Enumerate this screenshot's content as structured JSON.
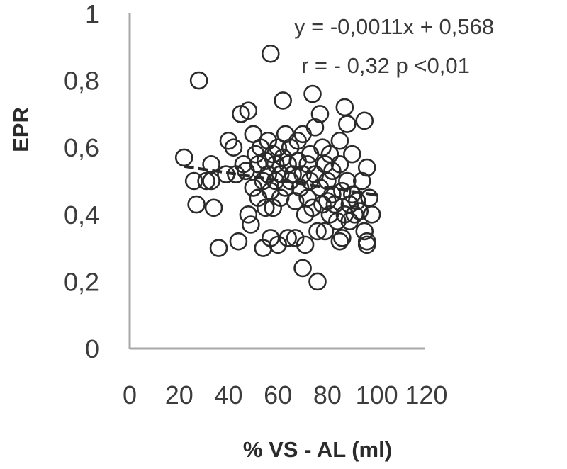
{
  "chart_data": {
    "type": "scatter",
    "xlabel": "% VS - AL  (ml)",
    "ylabel": "EPR",
    "xlim": [
      0,
      120
    ],
    "ylim": [
      0,
      1
    ],
    "x_ticks": [
      "0",
      "20",
      "40",
      "60",
      "80",
      "100",
      "120"
    ],
    "y_ticks": [
      "0",
      "0,2",
      "0,4",
      "0,6",
      "0,8",
      "1"
    ],
    "grid": false,
    "equation": "y = -0,0011x + 0,568",
    "stats": "r = - 0,32    p <0,01",
    "trendline": {
      "slope": -0.0011,
      "intercept": 0.568,
      "x_range": [
        22,
        100
      ]
    },
    "series": [
      {
        "points": [
          [
            22,
            0.57
          ],
          [
            26,
            0.5
          ],
          [
            27,
            0.43
          ],
          [
            28,
            0.8
          ],
          [
            31,
            0.5
          ],
          [
            33,
            0.55
          ],
          [
            33,
            0.5
          ],
          [
            34,
            0.42
          ],
          [
            36,
            0.3
          ],
          [
            39,
            0.52
          ],
          [
            40,
            0.62
          ],
          [
            42,
            0.6
          ],
          [
            44,
            0.32
          ],
          [
            45,
            0.7
          ],
          [
            46,
            0.55
          ],
          [
            47,
            0.53
          ],
          [
            48,
            0.71
          ],
          [
            48,
            0.4
          ],
          [
            49,
            0.37
          ],
          [
            50,
            0.64
          ],
          [
            50,
            0.48
          ],
          [
            51,
            0.58
          ],
          [
            52,
            0.45
          ],
          [
            52,
            0.55
          ],
          [
            53,
            0.6
          ],
          [
            54,
            0.5
          ],
          [
            54,
            0.3
          ],
          [
            55,
            0.56
          ],
          [
            55,
            0.42
          ],
          [
            56,
            0.62
          ],
          [
            56,
            0.52
          ],
          [
            57,
            0.33
          ],
          [
            57,
            0.47
          ],
          [
            58,
            0.58
          ],
          [
            58,
            0.42
          ],
          [
            59,
            0.55
          ],
          [
            59,
            0.5
          ],
          [
            60,
            0.6
          ],
          [
            60,
            0.31
          ],
          [
            61,
            0.52
          ],
          [
            61,
            0.45
          ],
          [
            62,
            0.74
          ],
          [
            62,
            0.57
          ],
          [
            63,
            0.48
          ],
          [
            64,
            0.55
          ],
          [
            64,
            0.33
          ],
          [
            65,
            0.5
          ],
          [
            65,
            0.6
          ],
          [
            66,
            0.52
          ],
          [
            67,
            0.44
          ],
          [
            67,
            0.33
          ],
          [
            68,
            0.62
          ],
          [
            68,
            0.56
          ],
          [
            69,
            0.48
          ],
          [
            70,
            0.64
          ],
          [
            70,
            0.52
          ],
          [
            70,
            0.24
          ],
          [
            71,
            0.4
          ],
          [
            71,
            0.31
          ],
          [
            72,
            0.55
          ],
          [
            72,
            0.45
          ],
          [
            73,
            0.58
          ],
          [
            73,
            0.5
          ],
          [
            74,
            0.76
          ],
          [
            74,
            0.42
          ],
          [
            75,
            0.66
          ],
          [
            75,
            0.52
          ],
          [
            76,
            0.35
          ],
          [
            76,
            0.2
          ],
          [
            77,
            0.7
          ],
          [
            77,
            0.48
          ],
          [
            78,
            0.6
          ],
          [
            78,
            0.43
          ],
          [
            79,
            0.55
          ],
          [
            79,
            0.35
          ],
          [
            80,
            0.5
          ],
          [
            80,
            0.44
          ],
          [
            81,
            0.58
          ],
          [
            81,
            0.4
          ],
          [
            82,
            0.53
          ],
          [
            82,
            0.46
          ],
          [
            83,
            0.43
          ],
          [
            84,
            0.38
          ],
          [
            85,
            0.55
          ],
          [
            85,
            0.62
          ],
          [
            86,
            0.47
          ],
          [
            86,
            0.33
          ],
          [
            87,
            0.72
          ],
          [
            87,
            0.4
          ],
          [
            88,
            0.67
          ],
          [
            88,
            0.5
          ],
          [
            89,
            0.43
          ],
          [
            89,
            0.38
          ],
          [
            90,
            0.58
          ],
          [
            90,
            0.46
          ],
          [
            91,
            0.4
          ],
          [
            92,
            0.44
          ],
          [
            93,
            0.41
          ],
          [
            94,
            0.5
          ],
          [
            95,
            0.35
          ],
          [
            95,
            0.68
          ],
          [
            96,
            0.32
          ],
          [
            96,
            0.54
          ],
          [
            96,
            0.31
          ],
          [
            97,
            0.45
          ],
          [
            98,
            0.4
          ],
          [
            57,
            0.88
          ],
          [
            43,
            0.52
          ],
          [
            63,
            0.64
          ],
          [
            85,
            0.32
          ]
        ]
      }
    ]
  }
}
